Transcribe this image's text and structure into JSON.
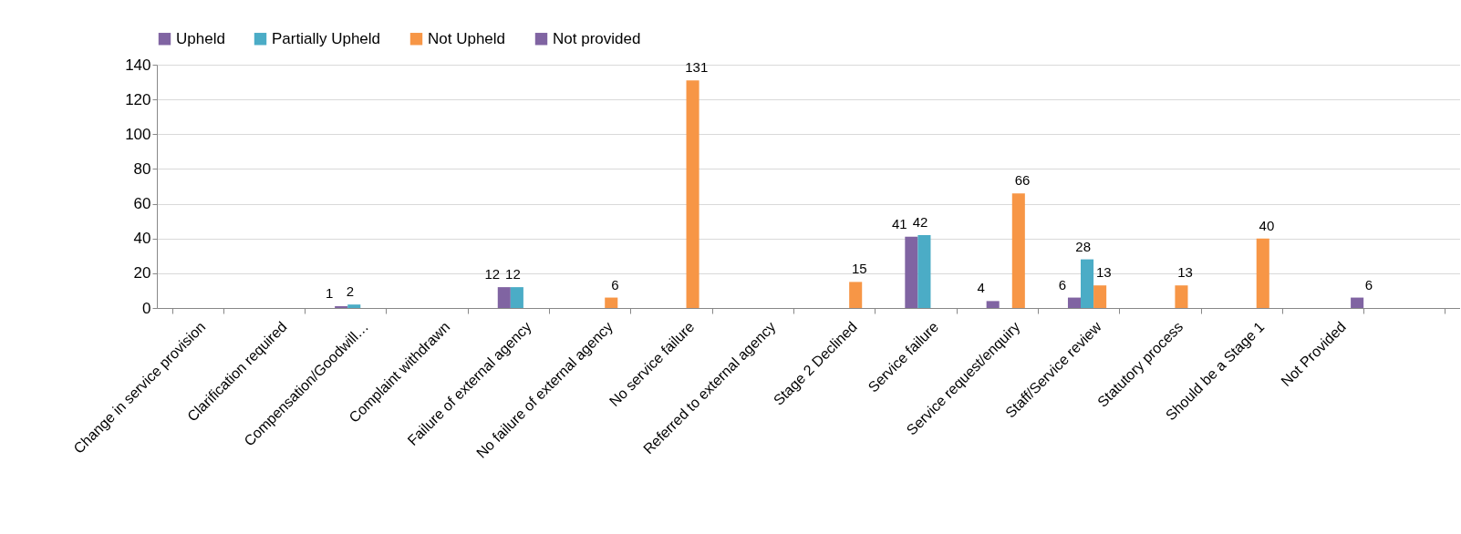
{
  "chart_data": {
    "type": "bar",
    "categories": [
      "Change in service provision",
      "Clarification required",
      "Compensation/Goodwill…",
      "Complaint withdrawn",
      "Failure of external agency",
      "No failure of external agency",
      "No service failure",
      "Referred to external agency",
      "Stage 2 Declined",
      "Service failure",
      "Service request/enquiry",
      "Staff/Service review",
      "Statutory process",
      "Should be a Stage 1",
      "Not Provided",
      null
    ],
    "series": [
      {
        "name": "Upheld",
        "color": "#8064a2",
        "values": [
          null,
          null,
          1,
          null,
          12,
          null,
          null,
          null,
          null,
          41,
          4,
          6,
          null,
          null,
          null,
          null
        ]
      },
      {
        "name": "Partially Upheld",
        "color": "#4bacc6",
        "values": [
          null,
          null,
          2,
          null,
          12,
          null,
          null,
          null,
          null,
          42,
          null,
          28,
          null,
          null,
          null,
          null
        ]
      },
      {
        "name": "Not Upheld",
        "color": "#f79646",
        "values": [
          null,
          null,
          null,
          null,
          null,
          6,
          131,
          null,
          15,
          null,
          66,
          13,
          13,
          40,
          null,
          null
        ]
      },
      {
        "name": "Not provided",
        "color": "#8064a2",
        "values": [
          null,
          null,
          null,
          null,
          null,
          null,
          null,
          null,
          null,
          null,
          null,
          null,
          null,
          null,
          6,
          null
        ]
      }
    ],
    "ylim": [
      0,
      140
    ],
    "yticks": [
      0,
      20,
      40,
      60,
      80,
      100,
      120,
      140
    ],
    "grid": "y",
    "legend": "top",
    "data_labels": true
  }
}
